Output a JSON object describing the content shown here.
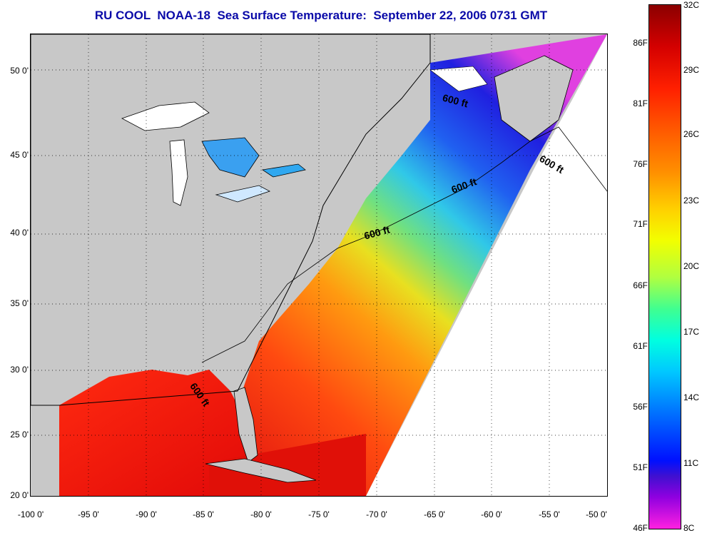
{
  "title": "RU COOL  NOAA-18  Sea Surface Temperature:  September 22, 2006 0731 GMT",
  "lat_labels": [
    "50 0'",
    "45 0'",
    "40 0'",
    "35 0'",
    "30 0'",
    "25 0'",
    "20 0'"
  ],
  "lon_labels": [
    "-100 0'",
    "-95 0'",
    "-90 0'",
    "-85 0'",
    "-80 0'",
    "-75 0'",
    "-70 0'",
    "-65 0'",
    "-60 0'",
    "-55 0'",
    "-50 0'"
  ],
  "colorbar": {
    "f_labels": [
      "86F",
      "81F",
      "76F",
      "71F",
      "66F",
      "61F",
      "56F",
      "51F",
      "46F"
    ],
    "c_labels": [
      "32C",
      "29C",
      "26C",
      "23C",
      "20C",
      "17C",
      "14C",
      "11C",
      "8C"
    ]
  },
  "isobath_label": "600 ft",
  "colors": {
    "title": "#0a0aa8",
    "land": "#c8c8c8",
    "no_data": "#ffffff"
  }
}
